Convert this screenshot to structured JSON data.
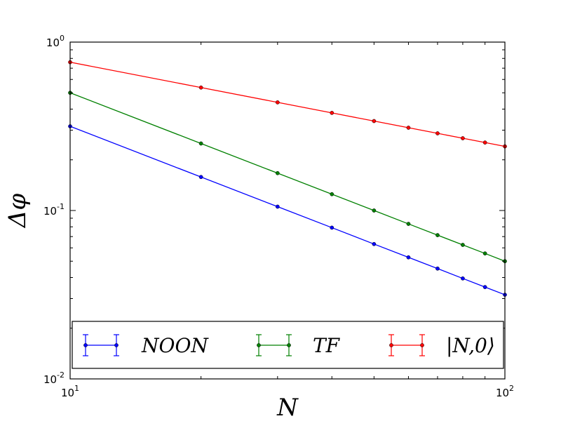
{
  "chart_data": {
    "type": "line",
    "xscale": "log",
    "yscale": "log",
    "xlim": [
      10,
      100
    ],
    "ylim": [
      0.01,
      1
    ],
    "xlabel": "N",
    "ylabel": "Δφ",
    "x_ticks": [
      {
        "value": 10,
        "base": "10",
        "exp": "1"
      },
      {
        "value": 100,
        "base": "10",
        "exp": "2"
      }
    ],
    "y_ticks": [
      {
        "value": 0.01,
        "base": "10",
        "exp": "-2"
      },
      {
        "value": 0.1,
        "base": "10",
        "exp": "-1"
      },
      {
        "value": 1,
        "base": "10",
        "exp": "0"
      }
    ],
    "grid": false,
    "legend_position": "bottom",
    "series": [
      {
        "name": "NOON",
        "color": "#0000ff",
        "x": [
          10,
          20,
          30,
          40,
          50,
          60,
          70,
          80,
          90,
          100
        ],
        "y": [
          0.3162,
          0.1581,
          0.1054,
          0.0791,
          0.0632,
          0.0527,
          0.0452,
          0.0395,
          0.0351,
          0.0316
        ]
      },
      {
        "name": "TF",
        "color": "#008000",
        "x": [
          10,
          20,
          30,
          40,
          50,
          60,
          70,
          80,
          90,
          100
        ],
        "y": [
          0.5,
          0.25,
          0.1667,
          0.125,
          0.1,
          0.0833,
          0.0714,
          0.0625,
          0.0556,
          0.05
        ]
      },
      {
        "name": "|N,0⟩",
        "color": "#ff0000",
        "x": [
          10,
          20,
          30,
          40,
          50,
          60,
          70,
          80,
          90,
          100
        ],
        "y": [
          0.7598,
          0.5373,
          0.4387,
          0.3799,
          0.3398,
          0.3102,
          0.2872,
          0.2686,
          0.2533,
          0.2403
        ]
      }
    ]
  }
}
